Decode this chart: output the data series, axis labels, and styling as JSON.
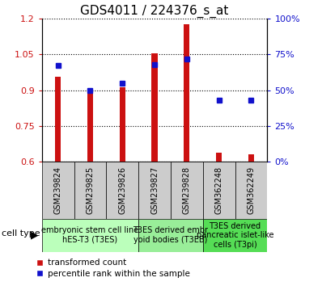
{
  "title": "GDS4011 / 224376_s_at",
  "samples": [
    "GSM239824",
    "GSM239825",
    "GSM239826",
    "GSM239827",
    "GSM239828",
    "GSM362248",
    "GSM362249"
  ],
  "transformed_counts": [
    0.955,
    0.905,
    0.912,
    1.055,
    1.175,
    0.638,
    0.632
  ],
  "percentile_ranks": [
    67,
    50,
    55,
    68,
    72,
    43,
    43
  ],
  "ylim_left": [
    0.6,
    1.2
  ],
  "ylim_right": [
    0,
    100
  ],
  "yticks_left": [
    0.6,
    0.75,
    0.9,
    1.05,
    1.2
  ],
  "yticks_right": [
    0,
    25,
    50,
    75,
    100
  ],
  "ytick_labels_left": [
    "0.6",
    "0.75",
    "0.9",
    "1.05",
    "1.2"
  ],
  "ytick_labels_right": [
    "0%",
    "25%",
    "50%",
    "75%",
    "100%"
  ],
  "bar_color": "#cc1111",
  "dot_color": "#1111cc",
  "bar_bottom": 0.6,
  "bar_width": 0.18,
  "dot_size": 5,
  "groups": [
    {
      "label": "embryonic stem cell line\nhES-T3 (T3ES)",
      "start": 0,
      "end": 3,
      "color": "#bbffbb"
    },
    {
      "label": "T3ES derived embr\nyoid bodies (T3EB)",
      "start": 3,
      "end": 5,
      "color": "#99ee99"
    },
    {
      "label": "T3ES derived\npancreatic islet-like\ncells (T3pi)",
      "start": 5,
      "end": 7,
      "color": "#55dd55"
    }
  ],
  "sample_box_color": "#cccccc",
  "cell_type_label": "cell type",
  "legend_red": "transformed count",
  "legend_blue": "percentile rank within the sample",
  "title_fontsize": 11,
  "tick_fontsize": 8,
  "sample_fontsize": 7,
  "group_fontsize": 7
}
